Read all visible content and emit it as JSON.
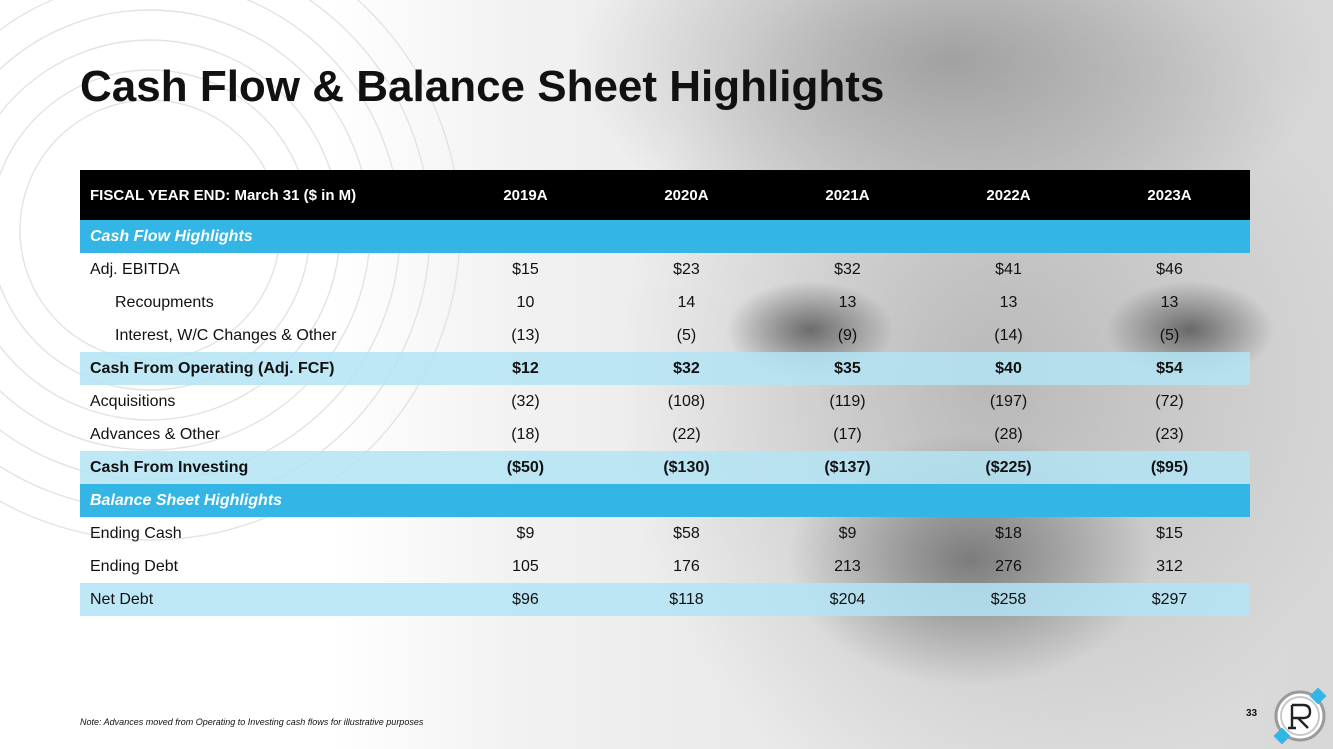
{
  "title": "Cash Flow & Balance Sheet Highlights",
  "table": {
    "header": {
      "label": "FISCAL YEAR END: March 31 ($ in M)",
      "years": [
        "2019A",
        "2020A",
        "2021A",
        "2022A",
        "2023A"
      ]
    },
    "sections": {
      "cash_flow": "Cash Flow Highlights",
      "balance_sheet": "Balance Sheet Highlights"
    },
    "rows": {
      "adj_ebitda": {
        "label": "Adj. EBITDA",
        "values": [
          "$15",
          "$23",
          "$32",
          "$41",
          "$46"
        ]
      },
      "recoupments": {
        "label": "Recoupments",
        "values": [
          "10",
          "14",
          "13",
          "13",
          "13"
        ]
      },
      "interest": {
        "label": "Interest, W/C Changes & Other",
        "values": [
          "(13)",
          "(5)",
          "(9)",
          "(14)",
          "(5)"
        ]
      },
      "cfo": {
        "label": "Cash From Operating (Adj. FCF)",
        "values": [
          "$12",
          "$32",
          "$35",
          "$40",
          "$54"
        ]
      },
      "acquisitions": {
        "label": "Acquisitions",
        "values": [
          "(32)",
          "(108)",
          "(119)",
          "(197)",
          "(72)"
        ]
      },
      "advances": {
        "label": "Advances & Other",
        "values": [
          "(18)",
          "(22)",
          "(17)",
          "(28)",
          "(23)"
        ]
      },
      "cfi": {
        "label": "Cash From Investing",
        "values": [
          "($50)",
          "($130)",
          "($137)",
          "($225)",
          "($95)"
        ]
      },
      "ending_cash": {
        "label": "Ending Cash",
        "values": [
          "$9",
          "$58",
          "$9",
          "$18",
          "$15"
        ]
      },
      "ending_debt": {
        "label": "Ending Debt",
        "values": [
          "105",
          "176",
          "213",
          "276",
          "312"
        ]
      },
      "net_debt": {
        "label": "Net Debt",
        "values": [
          "$96",
          "$118",
          "$204",
          "$258",
          "$297"
        ]
      }
    }
  },
  "note": "Note: Advances moved from Operating to Investing cash flows for illustrative purposes",
  "page_number": "33",
  "colors": {
    "section_blue": "#33b5e5",
    "total_row_blue": "#b4e4f6",
    "header_black": "#000000"
  },
  "logo": {
    "icon": "r-logo-icon"
  }
}
